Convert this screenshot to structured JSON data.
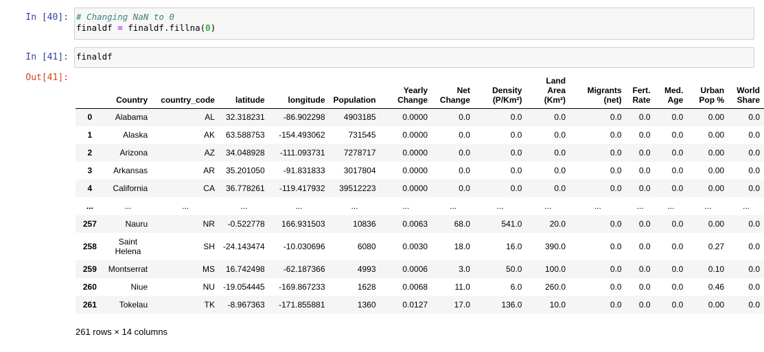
{
  "cells": [
    {
      "prompt": "In [40]:",
      "comment": "# Changing NaN to 0",
      "code_line2": {
        "var": "finaldf",
        "op": "=",
        "call": "finaldf.fillna(",
        "num": "0",
        "close": ")"
      }
    },
    {
      "prompt": "In [41]:",
      "code": "finaldf"
    }
  ],
  "output_prompt": "Out[41]:",
  "table": {
    "columns": [
      "",
      "Country",
      "country_code",
      "latitude",
      "longitude",
      "Population",
      "Yearly\nChange",
      "Net\nChange",
      "Density\n(P/Km²)",
      "Land\nArea\n(Km²)",
      "Migrants\n(net)",
      "Fert.\nRate",
      "Med.\nAge",
      "Urban\nPop %",
      "World\nShare"
    ],
    "rows": [
      [
        "0",
        "Alabama",
        "AL",
        "32.318231",
        "-86.902298",
        "4903185",
        "0.0000",
        "0.0",
        "0.0",
        "0.0",
        "0.0",
        "0.0",
        "0.0",
        "0.00",
        "0.0"
      ],
      [
        "1",
        "Alaska",
        "AK",
        "63.588753",
        "-154.493062",
        "731545",
        "0.0000",
        "0.0",
        "0.0",
        "0.0",
        "0.0",
        "0.0",
        "0.0",
        "0.00",
        "0.0"
      ],
      [
        "2",
        "Arizona",
        "AZ",
        "34.048928",
        "-111.093731",
        "7278717",
        "0.0000",
        "0.0",
        "0.0",
        "0.0",
        "0.0",
        "0.0",
        "0.0",
        "0.00",
        "0.0"
      ],
      [
        "3",
        "Arkansas",
        "AR",
        "35.201050",
        "-91.831833",
        "3017804",
        "0.0000",
        "0.0",
        "0.0",
        "0.0",
        "0.0",
        "0.0",
        "0.0",
        "0.00",
        "0.0"
      ],
      [
        "4",
        "California",
        "CA",
        "36.778261",
        "-119.417932",
        "39512223",
        "0.0000",
        "0.0",
        "0.0",
        "0.0",
        "0.0",
        "0.0",
        "0.0",
        "0.00",
        "0.0"
      ],
      [
        "...",
        "...",
        "...",
        "...",
        "...",
        "...",
        "...",
        "...",
        "...",
        "...",
        "...",
        "...",
        "...",
        "...",
        "..."
      ],
      [
        "257",
        "Nauru",
        "NR",
        "-0.522778",
        "166.931503",
        "10836",
        "0.0063",
        "68.0",
        "541.0",
        "20.0",
        "0.0",
        "0.0",
        "0.0",
        "0.00",
        "0.0"
      ],
      [
        "258",
        "Saint Helena",
        "SH",
        "-24.143474",
        "-10.030696",
        "6080",
        "0.0030",
        "18.0",
        "16.0",
        "390.0",
        "0.0",
        "0.0",
        "0.0",
        "0.27",
        "0.0"
      ],
      [
        "259",
        "Montserrat",
        "MS",
        "16.742498",
        "-62.187366",
        "4993",
        "0.0006",
        "3.0",
        "50.0",
        "100.0",
        "0.0",
        "0.0",
        "0.0",
        "0.10",
        "0.0"
      ],
      [
        "260",
        "Niue",
        "NU",
        "-19.054445",
        "-169.867233",
        "1628",
        "0.0068",
        "11.0",
        "6.0",
        "260.0",
        "0.0",
        "0.0",
        "0.0",
        "0.46",
        "0.0"
      ],
      [
        "261",
        "Tokelau",
        "TK",
        "-8.967363",
        "-171.855881",
        "1360",
        "0.0127",
        "17.0",
        "136.0",
        "10.0",
        "0.0",
        "0.0",
        "0.0",
        "0.00",
        "0.0"
      ]
    ]
  },
  "footer": "261 rows × 14 columns"
}
